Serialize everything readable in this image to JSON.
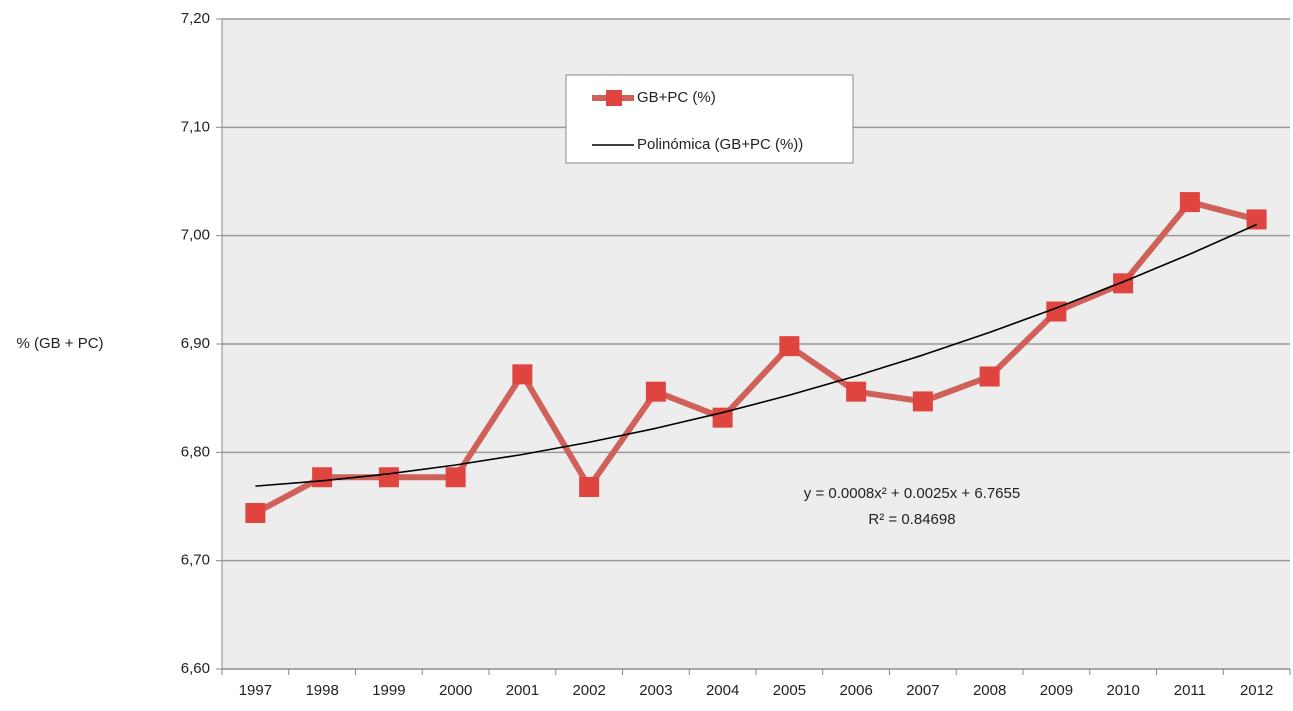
{
  "chart_data": {
    "type": "line",
    "y_label": "% (GB + PC)",
    "categories": [
      "1997",
      "1998",
      "1999",
      "2000",
      "2001",
      "2002",
      "2003",
      "2004",
      "2005",
      "2006",
      "2007",
      "2008",
      "2009",
      "2010",
      "2011",
      "2012"
    ],
    "series": [
      {
        "name": "GB+PC (%)",
        "color": "#d0605a",
        "marker_color": "#e0443f",
        "values": [
          6.744,
          6.777,
          6.777,
          6.777,
          6.872,
          6.768,
          6.856,
          6.832,
          6.898,
          6.856,
          6.847,
          6.87,
          6.93,
          6.956,
          7.031,
          7.015
        ]
      },
      {
        "name": "Polinómica (GB+PC (%))",
        "color": "#000000",
        "values": [
          6.7688,
          6.7737,
          6.7802,
          6.7883,
          6.798,
          6.8093,
          6.8222,
          6.8367,
          6.8528,
          6.8705,
          6.8898,
          6.9107,
          6.9332,
          6.9573,
          6.983,
          7.0103
        ]
      }
    ],
    "annotations": [
      "y = 0.0008x² + 0.0025x + 6.7655",
      "R² = 0.84698"
    ],
    "ylim": [
      6.6,
      7.2
    ],
    "yticks": [
      {
        "value": 6.6,
        "label": "6,60"
      },
      {
        "value": 6.7,
        "label": "6,70"
      },
      {
        "value": 6.8,
        "label": "6,80"
      },
      {
        "value": 6.9,
        "label": "6,90"
      },
      {
        "value": 7.0,
        "label": "7,00"
      },
      {
        "value": 7.1,
        "label": "7,10"
      },
      {
        "value": 7.2,
        "label": "7,20"
      }
    ],
    "grid": true
  }
}
